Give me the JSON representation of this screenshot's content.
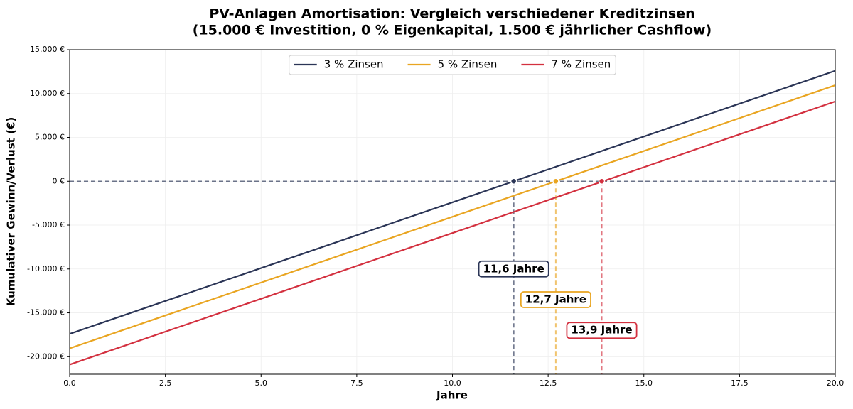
{
  "chart_data": {
    "type": "line",
    "title": "PV-Anlagen Amortisation: Vergleich verschiedener Kreditzinsen",
    "subtitle": "(15.000 € Investition, 0 % Eigenkapital, 1.500 € jährlicher Cashflow)",
    "x_label": "Jahre",
    "y_label": "Kumulativer Gewinn/Verlust (€)",
    "x": [
      0,
      20
    ],
    "series": [
      {
        "name": "3 % Zinsen",
        "color": "#2b3556",
        "values": [
          -17400,
          12600
        ],
        "break_even": 11.6,
        "break_even_label": "11,6 Jahre"
      },
      {
        "name": "5 % Zinsen",
        "color": "#e9a521",
        "values": [
          -19050,
          10950
        ],
        "break_even": 12.7,
        "break_even_label": "12,7 Jahre"
      },
      {
        "name": "7 % Zinsen",
        "color": "#d3303f",
        "values": [
          -20900,
          9100
        ],
        "break_even": 13.9,
        "break_even_label": "13,9 Jahre"
      }
    ],
    "xlim": [
      0,
      20
    ],
    "xticks": [
      {
        "value": 0,
        "label": "0.0"
      },
      {
        "value": 2.5,
        "label": "2.5"
      },
      {
        "value": 5,
        "label": "5.0"
      },
      {
        "value": 7.5,
        "label": "7.5"
      },
      {
        "value": 10,
        "label": "10.0"
      },
      {
        "value": 12.5,
        "label": "12.5"
      },
      {
        "value": 15,
        "label": "15.0"
      },
      {
        "value": 17.5,
        "label": "17.5"
      },
      {
        "value": 20,
        "label": "20.0"
      }
    ],
    "ylim": [
      -22000,
      15000
    ],
    "yticks": [
      {
        "value": -20000,
        "label": "-20.000 €"
      },
      {
        "value": -15000,
        "label": "-15.000 €"
      },
      {
        "value": -10000,
        "label": "-10.000 €"
      },
      {
        "value": -5000,
        "label": "-5.000 €"
      },
      {
        "value": 0,
        "label": "0 €"
      },
      {
        "value": 5000,
        "label": "5.000 €"
      },
      {
        "value": 10000,
        "label": "10.000 €"
      },
      {
        "value": 15000,
        "label": "15.000 €"
      }
    ],
    "grid": true,
    "legend": "upper center"
  }
}
